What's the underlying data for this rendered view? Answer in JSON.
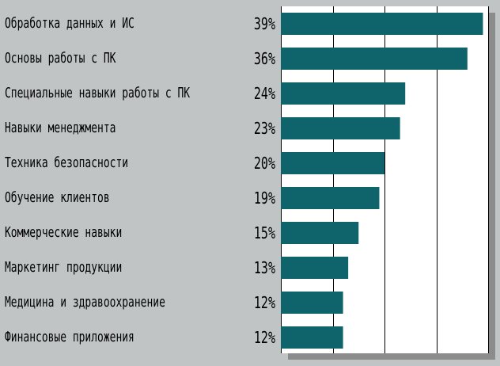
{
  "chart_data": {
    "type": "bar",
    "orientation": "horizontal",
    "categories": [
      "Обработка данных и ИС",
      "Основы работы с ПК",
      "Специальные навыки работы с ПК",
      "Навыки менеджмента",
      "Техника безопасности",
      "Обучение клиентов",
      "Коммерческие навыки",
      "Маркетинг продукции",
      "Медицина и здравоохранение",
      "Финансовые приложения"
    ],
    "values": [
      39,
      36,
      24,
      23,
      20,
      19,
      15,
      13,
      12,
      12
    ],
    "value_labels": [
      "39%",
      "36%",
      "24%",
      "23%",
      "20%",
      "19%",
      "15%",
      "13%",
      "12%",
      "12%"
    ],
    "xlim": [
      0,
      40
    ],
    "grid": true,
    "legend": "none",
    "colors": {
      "bar": "#0f636b",
      "plot_background": "#ffffff",
      "page_background": "#c0c4c4",
      "gridline": "#000000",
      "shadow": "#8c8c8c"
    }
  }
}
